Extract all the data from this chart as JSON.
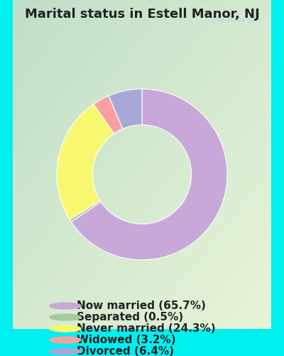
{
  "title": "Marital status in Estell Manor, NJ",
  "slices": [
    65.7,
    0.5,
    24.3,
    3.2,
    6.4
  ],
  "labels": [
    "Now married (65.7%)",
    "Separated (0.5%)",
    "Never married (24.3%)",
    "Widowed (3.2%)",
    "Divorced (6.4%)"
  ],
  "colors": [
    "#c8a8d8",
    "#a8c8a0",
    "#f8f870",
    "#f8a0a0",
    "#a8a8d8"
  ],
  "bg_cyan": "#00f0f0",
  "chart_bg_tl": "#c0dfc8",
  "chart_bg_tr": "#d8ecd8",
  "chart_bg_bl": "#d8ecc8",
  "chart_bg_br": "#e8f4d8",
  "title_fontsize": 13,
  "legend_fontsize": 11,
  "watermark": "City-Data.com",
  "watermark_color": "#b0d8e0",
  "start_angle": 90,
  "donut_width": 0.42
}
